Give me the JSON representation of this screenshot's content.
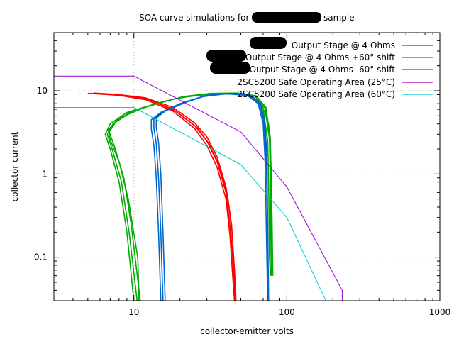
{
  "chart_data": {
    "type": "line",
    "title": "SOA curve simulations for",
    "title_suffix": "sample",
    "xlabel": "collector-emitter volts",
    "ylabel": "collector current",
    "x_scale": "log",
    "y_scale": "log",
    "xlim": [
      3,
      1000
    ],
    "ylim": [
      0.03,
      50
    ],
    "x_ticks": [
      {
        "value": 10,
        "label": "10"
      },
      {
        "value": 100,
        "label": "100"
      },
      {
        "value": 1000,
        "label": "1000"
      }
    ],
    "y_ticks": [
      {
        "value": 0.1,
        "label": "0.1"
      },
      {
        "value": 1,
        "label": "1"
      },
      {
        "value": 10,
        "label": "10"
      }
    ],
    "grid": true,
    "legend_position": "top-right",
    "series": [
      {
        "name": "Output Stage @ 4 Ohms",
        "color": "#ff0000",
        "redacted_prefix": true,
        "lines": [
          [
            [
              5,
              9.3
            ],
            [
              8,
              8.9
            ],
            [
              12,
              8.0
            ],
            [
              18,
              6.0
            ],
            [
              25,
              3.8
            ],
            [
              30,
              2.5
            ],
            [
              35,
              1.4
            ],
            [
              40,
              0.6
            ],
            [
              43,
              0.2
            ],
            [
              45,
              0.06
            ],
            [
              46,
              0.03
            ]
          ],
          [
            [
              5.2,
              9.3
            ],
            [
              8,
              8.8
            ],
            [
              12,
              7.8
            ],
            [
              18,
              5.7
            ],
            [
              25,
              3.5
            ],
            [
              30,
              2.2
            ],
            [
              35,
              1.2
            ],
            [
              40,
              0.5
            ],
            [
              42.5,
              0.18
            ],
            [
              44.5,
              0.05
            ],
            [
              45.5,
              0.03
            ]
          ],
          [
            [
              5.5,
              9.4
            ],
            [
              8,
              9.0
            ],
            [
              12,
              8.2
            ],
            [
              18,
              6.3
            ],
            [
              25,
              4.1
            ],
            [
              30,
              2.8
            ],
            [
              35,
              1.6
            ],
            [
              40,
              0.7
            ],
            [
              43.5,
              0.25
            ],
            [
              45.5,
              0.07
            ],
            [
              46.5,
              0.03
            ]
          ],
          [
            [
              6,
              9.2
            ],
            [
              9,
              8.7
            ],
            [
              13,
              7.7
            ],
            [
              19,
              5.6
            ],
            [
              26,
              3.6
            ],
            [
              31,
              2.3
            ],
            [
              36,
              1.3
            ],
            [
              41,
              0.55
            ],
            [
              44,
              0.19
            ],
            [
              46,
              0.03
            ]
          ]
        ]
      },
      {
        "name": "Output Stage @ 4 Ohms +60° shift",
        "color": "#00aa00",
        "redacted_prefix": true,
        "lines": [
          [
            [
              10,
              0.03
            ],
            [
              9,
              0.2
            ],
            [
              8,
              0.8
            ],
            [
              7,
              2.0
            ],
            [
              6.5,
              3.0
            ],
            [
              7,
              4.0
            ],
            [
              9,
              5.5
            ],
            [
              14,
              7.0
            ],
            [
              20,
              8.3
            ],
            [
              30,
              9.0
            ],
            [
              45,
              9.2
            ],
            [
              60,
              8.5
            ],
            [
              70,
              6.0
            ],
            [
              75,
              2.5
            ],
            [
              76,
              0.8
            ],
            [
              77,
              0.1
            ],
            [
              78,
              0.06
            ]
          ],
          [
            [
              10.5,
              0.03
            ],
            [
              9.3,
              0.2
            ],
            [
              8.3,
              0.8
            ],
            [
              7.2,
              2.0
            ],
            [
              6.7,
              3.0
            ],
            [
              7.3,
              4.0
            ],
            [
              9.5,
              5.6
            ],
            [
              15,
              7.2
            ],
            [
              21,
              8.5
            ],
            [
              31,
              9.2
            ],
            [
              46,
              9.3
            ],
            [
              62,
              8.6
            ],
            [
              72,
              6.2
            ],
            [
              77,
              2.6
            ],
            [
              78,
              0.8
            ],
            [
              79,
              0.06
            ]
          ],
          [
            [
              11,
              0.03
            ],
            [
              9.6,
              0.25
            ],
            [
              8.6,
              0.9
            ],
            [
              7.5,
              2.1
            ],
            [
              6.9,
              3.2
            ],
            [
              7.6,
              4.2
            ],
            [
              10,
              5.8
            ],
            [
              15.5,
              7.4
            ],
            [
              22,
              8.6
            ],
            [
              32,
              9.3
            ],
            [
              47,
              9.4
            ],
            [
              63,
              8.7
            ],
            [
              73,
              6.3
            ],
            [
              78,
              2.7
            ],
            [
              79,
              0.9
            ],
            [
              80,
              0.06
            ]
          ],
          [
            [
              10.8,
              0.03
            ],
            [
              10.6,
              0.1
            ],
            [
              9.2,
              0.5
            ],
            [
              8.0,
              1.4
            ],
            [
              7.0,
              2.6
            ],
            [
              6.8,
              3.4
            ],
            [
              8,
              4.7
            ],
            [
              12,
              6.4
            ],
            [
              18,
              7.9
            ],
            [
              26,
              8.9
            ],
            [
              40,
              9.3
            ],
            [
              55,
              9.0
            ],
            [
              68,
              7.2
            ],
            [
              76,
              4.0
            ],
            [
              78.5,
              1.5
            ],
            [
              80,
              0.3
            ],
            [
              81,
              0.06
            ]
          ]
        ]
      },
      {
        "name": "Output Stage @ 4 Ohms -60° shift",
        "color": "#0066cc",
        "redacted_prefix": true,
        "lines": [
          [
            [
              15,
              0.03
            ],
            [
              14.5,
              0.2
            ],
            [
              14,
              0.9
            ],
            [
              13.5,
              2.2
            ],
            [
              13,
              3.5
            ],
            [
              13,
              4.5
            ],
            [
              15,
              5.5
            ],
            [
              20,
              7.0
            ],
            [
              28,
              8.5
            ],
            [
              40,
              9.2
            ],
            [
              55,
              8.8
            ],
            [
              65,
              7.0
            ],
            [
              70,
              4.0
            ],
            [
              72,
              1.5
            ],
            [
              73,
              0.4
            ],
            [
              74,
              0.1
            ],
            [
              75,
              0.03
            ]
          ],
          [
            [
              15.5,
              0.03
            ],
            [
              15,
              0.2
            ],
            [
              14.5,
              0.9
            ],
            [
              14,
              2.3
            ],
            [
              13.5,
              3.6
            ],
            [
              13.5,
              4.6
            ],
            [
              15.5,
              5.6
            ],
            [
              21,
              7.2
            ],
            [
              29,
              8.7
            ],
            [
              41,
              9.3
            ],
            [
              56,
              8.9
            ],
            [
              66,
              7.1
            ],
            [
              71,
              4.1
            ],
            [
              73,
              1.6
            ],
            [
              74.5,
              0.4
            ],
            [
              75.5,
              0.03
            ]
          ],
          [
            [
              16,
              0.03
            ],
            [
              15.5,
              0.2
            ],
            [
              15,
              1.0
            ],
            [
              14.5,
              2.4
            ],
            [
              14,
              3.7
            ],
            [
              14,
              4.7
            ],
            [
              16,
              5.7
            ],
            [
              22,
              7.3
            ],
            [
              30,
              8.8
            ],
            [
              42,
              9.3
            ],
            [
              57,
              9.0
            ],
            [
              67,
              7.2
            ],
            [
              72,
              4.2
            ],
            [
              74,
              1.6
            ],
            [
              76,
              0.03
            ]
          ]
        ]
      },
      {
        "name": "2SC5200 Safe Operating Area (25°C)",
        "color": "#9900cc",
        "lines": [
          [
            [
              3,
              15
            ],
            [
              10,
              15
            ],
            [
              50,
              3.2
            ],
            [
              100,
              0.7
            ],
            [
              230,
              0.04
            ],
            [
              230,
              0.03
            ]
          ]
        ]
      },
      {
        "name": "2SC5200 Safe Operating Area (60°C)",
        "color": "#00cccc",
        "lines": [
          [
            [
              3,
              6.3
            ],
            [
              10,
              6.3
            ],
            [
              50,
              1.3
            ],
            [
              100,
              0.3
            ],
            [
              180,
              0.03
            ]
          ]
        ]
      }
    ]
  }
}
